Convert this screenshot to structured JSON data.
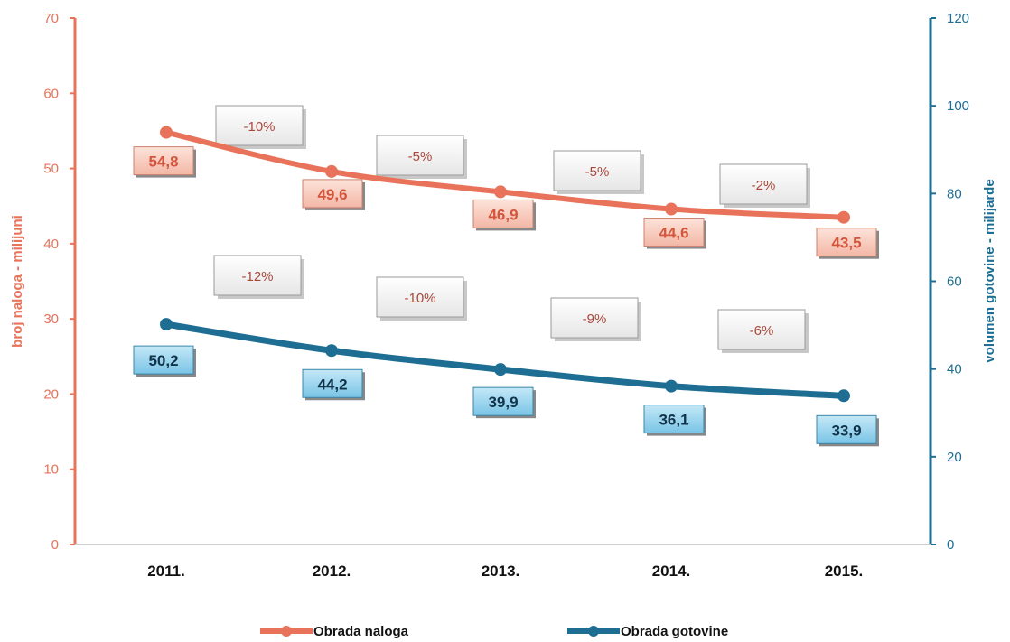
{
  "chart_data": {
    "type": "line",
    "categories": [
      "2011.",
      "2012.",
      "2013.",
      "2014.",
      "2015."
    ],
    "series": [
      {
        "name": "Obrada naloga",
        "axis": "left",
        "color": "#e8735a",
        "values": [
          54.8,
          49.6,
          46.9,
          44.6,
          43.5
        ],
        "value_labels": [
          "54,8",
          "49,6",
          "46,9",
          "44,6",
          "43,5"
        ],
        "change_labels": [
          "-10%",
          "-5%",
          "-5%",
          "-2%"
        ]
      },
      {
        "name": "Obrada gotovine",
        "axis": "right",
        "color": "#1e6e93",
        "values": [
          50.2,
          44.2,
          39.9,
          36.1,
          33.9
        ],
        "value_labels": [
          "50,2",
          "44,2",
          "39,9",
          "36,1",
          "33,9"
        ],
        "change_labels": [
          "-12%",
          "-10%",
          "-9%",
          "-6%"
        ]
      }
    ],
    "y_left": {
      "label": "broj naloga - milijuni",
      "min": 0,
      "max": 70,
      "ticks": [
        0,
        10,
        20,
        30,
        40,
        50,
        60,
        70
      ],
      "color": "#e8735a"
    },
    "y_right": {
      "label": "volumen gotovine - milijarde",
      "min": 0,
      "max": 120,
      "ticks": [
        0,
        20,
        40,
        60,
        80,
        100,
        120
      ],
      "color": "#1e6e93"
    },
    "grid": false,
    "legend_position": "bottom"
  }
}
